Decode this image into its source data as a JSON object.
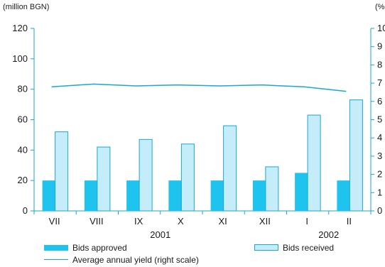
{
  "chart_data": {
    "type": "bar",
    "left_unit": "(million BGN)",
    "right_unit": "(%",
    "categories": [
      "VII",
      "VIII",
      "IX",
      "X",
      "XI",
      "XII",
      "I",
      "II"
    ],
    "years": [
      {
        "label": "2001",
        "categories": [
          "VII",
          "VIII",
          "IX",
          "X",
          "XI",
          "XII"
        ]
      },
      {
        "label": "2002",
        "categories": [
          "I",
          "II"
        ]
      }
    ],
    "left_axis": {
      "min": 0,
      "max": 120,
      "ticks": [
        0,
        20,
        40,
        60,
        80,
        100,
        120
      ]
    },
    "right_axis": {
      "min": 0,
      "max": 10,
      "ticks": [
        "0",
        "1",
        "2",
        "3",
        "4",
        "5",
        "6",
        "7",
        "8",
        "9",
        "10"
      ]
    },
    "series": [
      {
        "name": "Bids approved",
        "kind": "bar",
        "axis": "left",
        "color": "#1ec3ee",
        "values": [
          20,
          20,
          20,
          20,
          20,
          20,
          25,
          20
        ]
      },
      {
        "name": "Bids received",
        "kind": "bar",
        "axis": "left",
        "color": "#c4ecf9",
        "border": "#1aa7d6",
        "values": [
          52,
          42,
          47,
          44,
          56,
          29,
          63,
          73
        ]
      },
      {
        "name": "Average annual yield (right scale)",
        "kind": "line",
        "axis": "right",
        "color": "#1aa7d6",
        "values": [
          6.8,
          6.95,
          6.85,
          6.9,
          6.85,
          6.9,
          6.8,
          6.55
        ]
      }
    ],
    "axis_color": "#1aa7d6",
    "grid": false,
    "legend_position": "bottom"
  }
}
